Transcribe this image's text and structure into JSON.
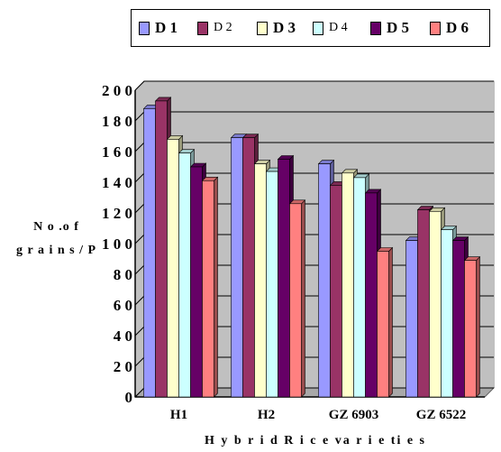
{
  "chart_data": {
    "type": "bar",
    "categories": [
      "H1",
      "H2",
      "GZ 6903",
      "GZ 6522"
    ],
    "series": [
      {
        "name": "D1",
        "color": "#9999ff",
        "values": [
          188,
          169,
          152,
          102
        ]
      },
      {
        "name": "D2",
        "color": "#993366",
        "values": [
          193,
          169,
          138,
          122
        ]
      },
      {
        "name": "D3",
        "color": "#ffffcc",
        "values": [
          168,
          152,
          146,
          121
        ]
      },
      {
        "name": "D4",
        "color": "#ccffff",
        "values": [
          159,
          147,
          143,
          109
        ]
      },
      {
        "name": "D5",
        "color": "#660066",
        "values": [
          150,
          155,
          133,
          102
        ]
      },
      {
        "name": "D6",
        "color": "#ff8080",
        "values": [
          141,
          126,
          95,
          89
        ]
      }
    ],
    "legend_labels": [
      "D 1",
      "D 2",
      "D 3",
      "D 4",
      "D 5",
      "D 6"
    ],
    "yticks": [
      "2 0 0",
      "1 8 0",
      "1 6 0",
      "1 4 0",
      "1 2 0",
      "1 0 0",
      "8 0",
      "6 0",
      "4 0",
      "2 0",
      "0"
    ],
    "ytick_values": [
      200,
      180,
      160,
      140,
      120,
      100,
      80,
      60,
      40,
      20,
      0
    ],
    "ylim": [
      0,
      200
    ],
    "ylabel_lines": [
      "N o .o f",
      "g r a i n s / P"
    ],
    "xlabel": "H y b r i d R i c e    va r i e ti e s",
    "grid": true,
    "legend_position": "top",
    "background": "#c0c0c0"
  }
}
